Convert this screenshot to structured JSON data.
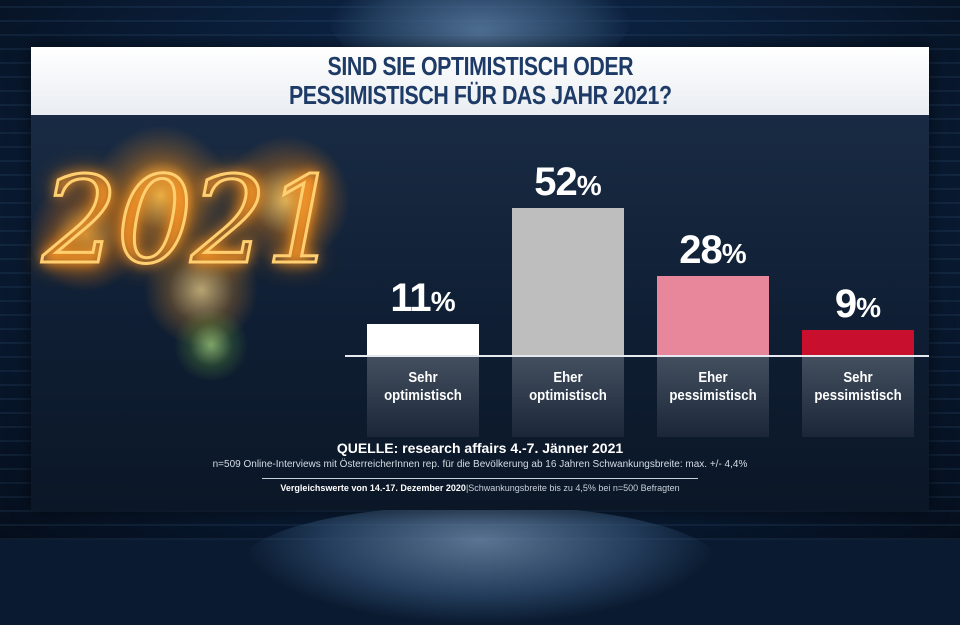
{
  "title_lines": [
    "SIND SIE OPTIMISTISCH ODER",
    "PESSIMISTISCH FÜR DAS JAHR 2021?"
  ],
  "image_text": "2021",
  "chart_data": {
    "type": "bar",
    "title": "SIND SIE OPTIMISTISCH ODER PESSIMISTISCH FÜR DAS JAHR 2021?",
    "categories": [
      "Sehr optimistisch",
      "Eher optimistisch",
      "Eher pessimistisch",
      "Sehr pessimistisch"
    ],
    "category_lines": [
      [
        "Sehr",
        "optimistisch"
      ],
      [
        "Eher",
        "optimistisch"
      ],
      [
        "Eher",
        "pessimistisch"
      ],
      [
        "Sehr",
        "pessimistisch"
      ]
    ],
    "values": [
      11,
      52,
      28,
      9
    ],
    "unit": "%",
    "colors": [
      "#ffffff",
      "#bebebe",
      "#e8879c",
      "#c8102e"
    ],
    "ylim": [
      0,
      60
    ],
    "xlabel": "",
    "ylabel": "",
    "grid": false
  },
  "source": {
    "main": "QUELLE: research affairs 4.-7. Jänner 2021",
    "methodology": "n=509 Online-Interviews mit ÖsterreicherInnen rep. für die Bevölkerung ab 16 Jahren  Schwankungsbreite: max. +/- 4,4%",
    "comparison_bold": "Vergleichswerte von 14.-17. Dezember 2020",
    "comparison_rest": "|Schwankungsbreite bis zu 4,5% bei n=500 Befragten"
  }
}
